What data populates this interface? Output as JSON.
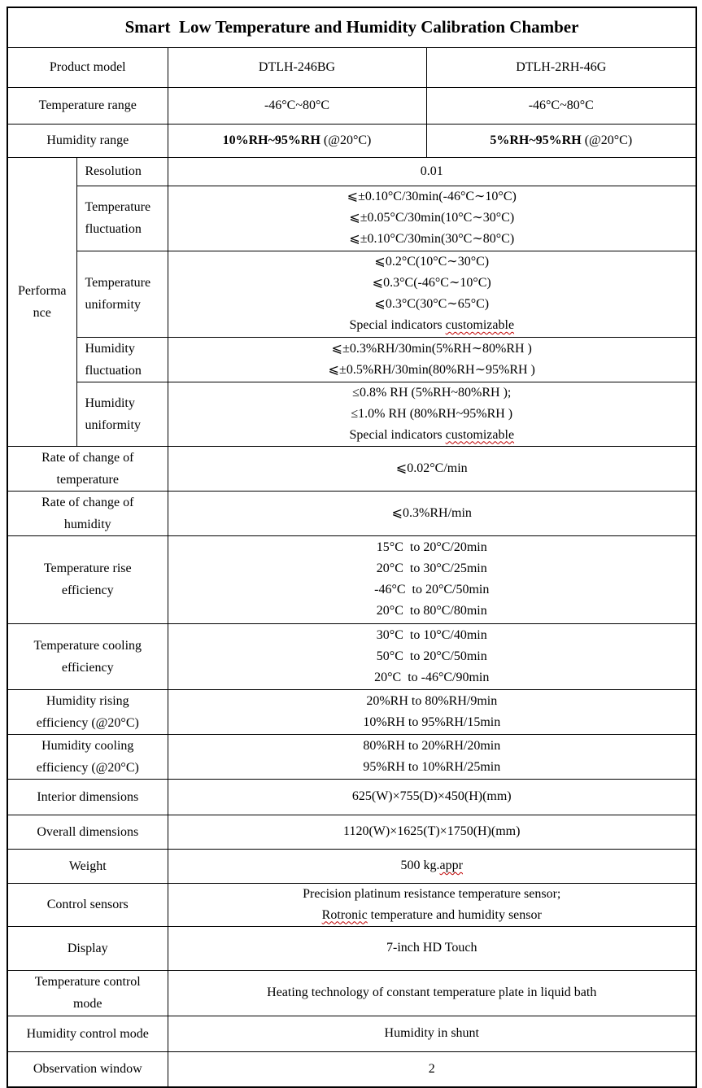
{
  "title": "Smart  Low Temperature and Humidity Calibration Chamber",
  "colors": {
    "border": "#000000",
    "text": "#000000",
    "background": "#ffffff",
    "squiggle": "#c00000"
  },
  "squiggle_words": [
    "customizable",
    "Rotronic",
    "appr"
  ],
  "table": {
    "product_model": {
      "label": "Product model",
      "model_a": "DTLH-246BG",
      "model_b": "DTLH-2RH-46G"
    },
    "temperature_range": {
      "label": "Temperature range",
      "model_a": "-46°C~80°C",
      "model_b": "-46°C~80°C"
    },
    "humidity_range": {
      "label": "Humidity range",
      "model_a_bold": "10%RH~95%RH",
      "model_a_rest": " (@20°C)",
      "model_b_bold": "5%RH~95%RH",
      "model_b_rest": " (@20°C)"
    },
    "performance": {
      "label": "Performa\nnce",
      "resolution": {
        "label": "Resolution",
        "value": "0.01"
      },
      "temperature_fluctuation": {
        "label": "Temperature\nfluctuation",
        "value": [
          "⩽±0.10°C/30min(-46°C∼10°C)",
          "⩽±0.05°C/30min(10°C∼30°C)",
          "⩽±0.10°C/30min(30°C∼80°C)"
        ]
      },
      "temperature_uniformity": {
        "label": "Temperature\nuniformity",
        "value": [
          "⩽0.2°C(10°C∼30°C)",
          "⩽0.3°C(-46°C∼10°C)",
          "⩽0.3°C(30°C∼65°C)",
          "Special indicators customizable"
        ]
      },
      "humidity_fluctuation": {
        "label": "Humidity\nfluctuation",
        "value": [
          "⩽±0.3%RH/30min(5%RH∼80%RH )",
          "⩽±0.5%RH/30min(80%RH∼95%RH )"
        ]
      },
      "humidity_uniformity": {
        "label": "Humidity\nuniformity",
        "value": [
          "≤0.8% RH (5%RH~80%RH );",
          "≤1.0% RH (80%RH~95%RH )",
          "Special indicators customizable"
        ]
      }
    },
    "rate_of_change_temperature": {
      "label": "Rate of change of\ntemperature",
      "value": "⩽0.02°C/min"
    },
    "rate_of_change_humidity": {
      "label": "Rate of change of\nhumidity",
      "value": "⩽0.3%RH/min"
    },
    "temperature_rise_efficiency": {
      "label": "Temperature rise\nefficiency",
      "value": [
        "15°C  to 20°C/20min",
        "20°C  to 30°C/25min",
        "-46°C  to 20°C/50min",
        "20°C  to 80°C/80min"
      ]
    },
    "temperature_cooling_efficiency": {
      "label": "Temperature cooling\nefficiency",
      "value": [
        "30°C  to 10°C/40min",
        "50°C  to 20°C/50min",
        "20°C  to -46°C/90min"
      ]
    },
    "humidity_rising_efficiency": {
      "label": "Humidity rising\nefficiency (@20°C)",
      "value": [
        "20%RH to 80%RH/9min",
        "10%RH to 95%RH/15min"
      ]
    },
    "humidity_cooling_efficiency": {
      "label": "Humidity cooling\nefficiency (@20°C)",
      "value": [
        "80%RH to 20%RH/20min",
        "95%RH to 10%RH/25min"
      ]
    },
    "interior_dimensions": {
      "label": "Interior dimensions",
      "value": "625(W)×755(D)×450(H)(mm)"
    },
    "overall_dimensions": {
      "label": "Overall dimensions",
      "value": "1120(W)×1625(T)×1750(H)(mm)"
    },
    "weight": {
      "label": "Weight",
      "value": "500 kg.appr"
    },
    "control_sensors": {
      "label": "Control sensors",
      "value": [
        "Precision platinum resistance temperature sensor;",
        "Rotronic temperature and humidity sensor"
      ]
    },
    "display": {
      "label": "Display",
      "value": "7-inch HD Touch"
    },
    "temperature_control_mode": {
      "label": "Temperature control\nmode",
      "value": "Heating technology of constant temperature plate in liquid bath"
    },
    "humidity_control_mode": {
      "label": "Humidity control mode",
      "value": "Humidity in shunt"
    },
    "observation_window": {
      "label": "Observation window",
      "value": "2"
    }
  }
}
